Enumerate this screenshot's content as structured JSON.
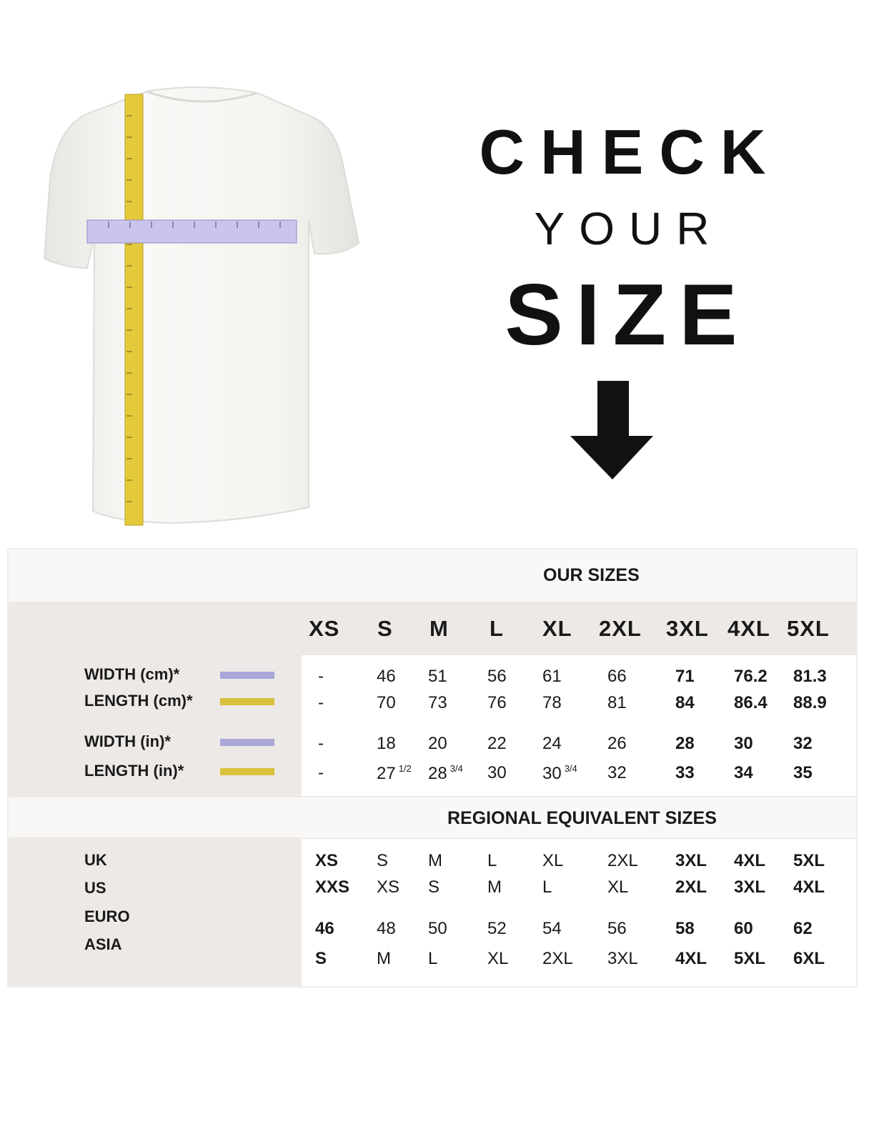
{
  "headline": {
    "line1": "CHECK",
    "line2": "YOUR",
    "line3": "SIZE"
  },
  "icons": {
    "shirt": "tshirt-with-measuring-tapes",
    "arrow": "arrow-down-icon"
  },
  "colors": {
    "width_tape": "#a9a6d8",
    "length_tape": "#d9c13c",
    "table_bg": "#ede9e6",
    "band_bg": "#f9f8f6"
  },
  "table": {
    "our_sizes_title": "OUR SIZES",
    "sizes": [
      "XS",
      "S",
      "M",
      "L",
      "XL",
      "2XL",
      "3XL",
      "4XL",
      "5XL"
    ],
    "measure_rows": [
      {
        "label": "WIDTH (cm)*",
        "swatch": "#a9a6d8",
        "cells": [
          {
            "v": "-"
          },
          {
            "v": "46"
          },
          {
            "v": "51"
          },
          {
            "v": "56"
          },
          {
            "v": "61"
          },
          {
            "v": "66"
          },
          {
            "v": "71",
            "b": true
          },
          {
            "v": "76.2",
            "b": true
          },
          {
            "v": "81.3",
            "b": true
          }
        ]
      },
      {
        "label": "LENGTH (cm)*",
        "swatch": "#d9c13c",
        "cells": [
          {
            "v": "-"
          },
          {
            "v": "70"
          },
          {
            "v": "73"
          },
          {
            "v": "76"
          },
          {
            "v": "78"
          },
          {
            "v": "81"
          },
          {
            "v": "84",
            "b": true
          },
          {
            "v": "86.4",
            "b": true
          },
          {
            "v": "88.9",
            "b": true
          }
        ]
      },
      {
        "label": "WIDTH (in)*",
        "swatch": "#a9a6d8",
        "cells": [
          {
            "v": "-"
          },
          {
            "v": "18"
          },
          {
            "v": "20"
          },
          {
            "v": "22"
          },
          {
            "v": "24"
          },
          {
            "v": "26"
          },
          {
            "v": "28",
            "b": true
          },
          {
            "v": "30",
            "b": true
          },
          {
            "v": "32",
            "b": true
          }
        ]
      },
      {
        "label": "LENGTH (in)*",
        "swatch": "#d9c13c",
        "cells": [
          {
            "v": "-"
          },
          {
            "v": "27",
            "sup": "1/2"
          },
          {
            "v": "28",
            "sup": "3/4"
          },
          {
            "v": "30"
          },
          {
            "v": "30",
            "sup": "3/4"
          },
          {
            "v": "32"
          },
          {
            "v": "33",
            "b": true
          },
          {
            "v": "34",
            "b": true
          },
          {
            "v": "35",
            "b": true
          }
        ]
      }
    ],
    "regional_title": "REGIONAL EQUIVALENT SIZES",
    "regional_labels": [
      "UK",
      "US",
      "EURO",
      "ASIA"
    ],
    "regional_rows": [
      [
        "XS",
        "S",
        "M",
        "L",
        "XL",
        "2XL",
        "3XL",
        "4XL",
        "5XL"
      ],
      [
        "XXS",
        "XS",
        "S",
        "M",
        "L",
        "XL",
        "2XL",
        "3XL",
        "4XL"
      ],
      [
        "46",
        "48",
        "50",
        "52",
        "54",
        "56",
        "58",
        "60",
        "62"
      ],
      [
        "S",
        "M",
        "L",
        "XL",
        "2XL",
        "3XL",
        "4XL",
        "5XL",
        "6XL"
      ]
    ]
  }
}
